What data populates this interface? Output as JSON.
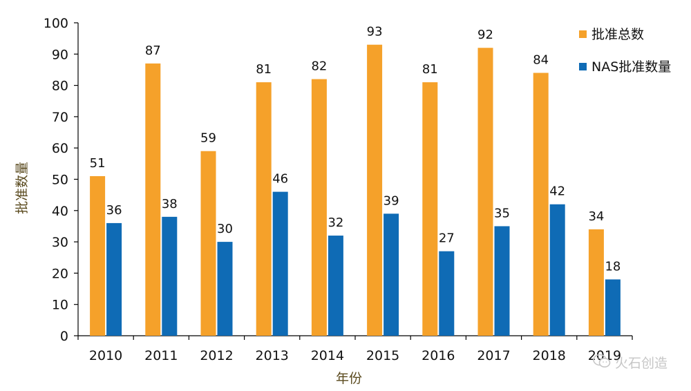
{
  "chart_data": {
    "type": "bar",
    "categories": [
      "2010",
      "2011",
      "2012",
      "2013",
      "2014",
      "2015",
      "2016",
      "2017",
      "2018",
      "2019"
    ],
    "series": [
      {
        "name": "批准总数",
        "color": "#f5a12a",
        "values": [
          51,
          87,
          59,
          81,
          82,
          93,
          81,
          92,
          84,
          34
        ]
      },
      {
        "name": "NAS批准数量",
        "color": "#0f6bb5",
        "values": [
          36,
          38,
          30,
          46,
          32,
          39,
          27,
          35,
          42,
          18
        ]
      }
    ],
    "xlabel": "年份",
    "ylabel": "批准数量",
    "ylim": [
      0,
      100
    ],
    "yticks": [
      0,
      10,
      20,
      30,
      40,
      50,
      60,
      70,
      80,
      90,
      100
    ],
    "data_labels": true,
    "legend_position": "top-right"
  },
  "watermark": {
    "icon": "wechat-icon",
    "text": "火石创造"
  }
}
